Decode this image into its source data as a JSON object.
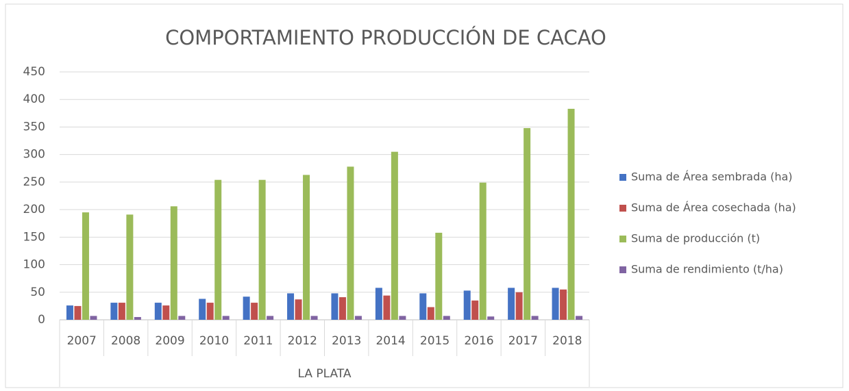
{
  "chart_data": {
    "type": "bar",
    "title": "COMPORTAMIENTO PRODUCCIÓN DE CACAO",
    "categories": [
      "2007",
      "2008",
      "2009",
      "2010",
      "2011",
      "2012",
      "2013",
      "2014",
      "2015",
      "2016",
      "2017",
      "2018"
    ],
    "group_label": "LA PLATA",
    "series": [
      {
        "name": "Suma de Área sembrada (ha)",
        "color": "#4472c4",
        "values": [
          26,
          31,
          31,
          38,
          42,
          48,
          48,
          58,
          48,
          53,
          58,
          58
        ]
      },
      {
        "name": "Suma de Área cosechada (ha)",
        "color": "#c0504d",
        "values": [
          25,
          31,
          26,
          31,
          31,
          37,
          41,
          44,
          23,
          35,
          50,
          55
        ]
      },
      {
        "name": "Suma de producción (t)",
        "color": "#9bbb59",
        "values": [
          195,
          191,
          206,
          254,
          254,
          263,
          278,
          305,
          158,
          249,
          348,
          383
        ]
      },
      {
        "name": "Suma de rendimiento (t/ha)",
        "color": "#8064a2",
        "values": [
          7,
          5,
          7,
          7,
          7,
          7,
          7,
          7,
          7,
          6,
          7,
          7
        ]
      }
    ],
    "ylim": [
      0,
      450
    ],
    "yticks": [
      0,
      50,
      100,
      150,
      200,
      250,
      300,
      350,
      400,
      450
    ],
    "grid": true,
    "legend": "right"
  }
}
